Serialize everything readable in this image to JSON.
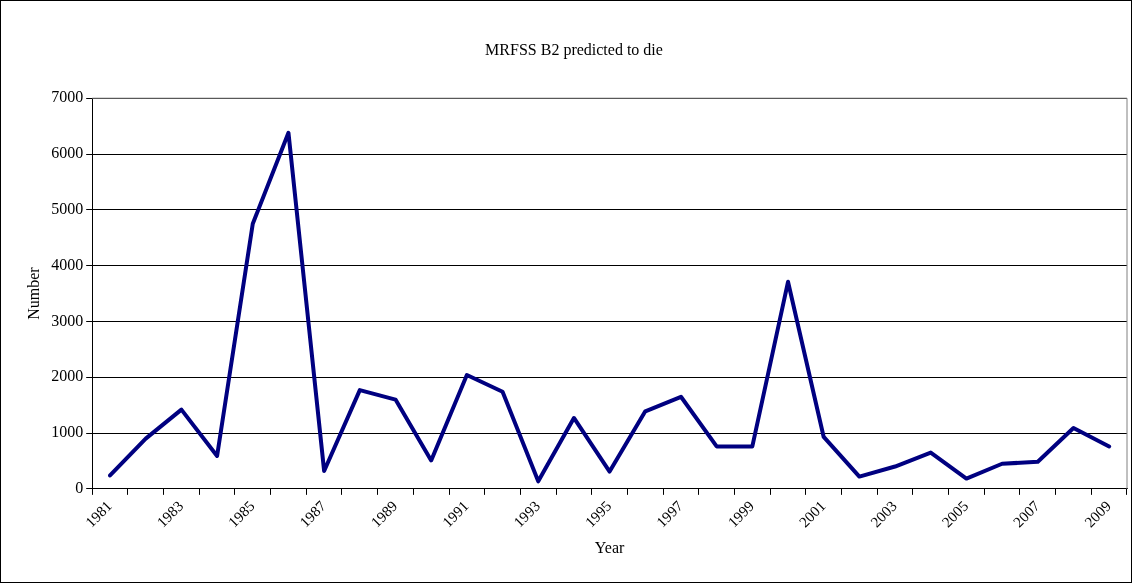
{
  "chart_data": {
    "type": "line",
    "title": "MRFSS B2 predicted to die",
    "xlabel": "Year",
    "ylabel": "Number",
    "categories": [
      "1981",
      null,
      "1983",
      null,
      "1985",
      null,
      "1987",
      null,
      "1989",
      null,
      "1991",
      null,
      "1993",
      null,
      "1995",
      null,
      "1997",
      null,
      "1999",
      null,
      "2001",
      null,
      "2003",
      null,
      "2005",
      null,
      "2007",
      null,
      "2009"
    ],
    "series": [
      {
        "color": "#000080",
        "values": [
          240,
          900,
          1420,
          590,
          4750,
          6380,
          320,
          1770,
          1600,
          510,
          2040,
          1740,
          135,
          1270,
          310,
          1390,
          1650,
          760,
          760,
          3710,
          930,
          220,
          400,
          650,
          185,
          450,
          485,
          1090,
          760
        ]
      }
    ],
    "ylim": [
      0,
      7000
    ],
    "yticks": [
      0,
      1000,
      2000,
      3000,
      4000,
      5000,
      6000,
      7000
    ],
    "grid": "y",
    "legend": false,
    "marker": "none",
    "line_style": "solid"
  }
}
